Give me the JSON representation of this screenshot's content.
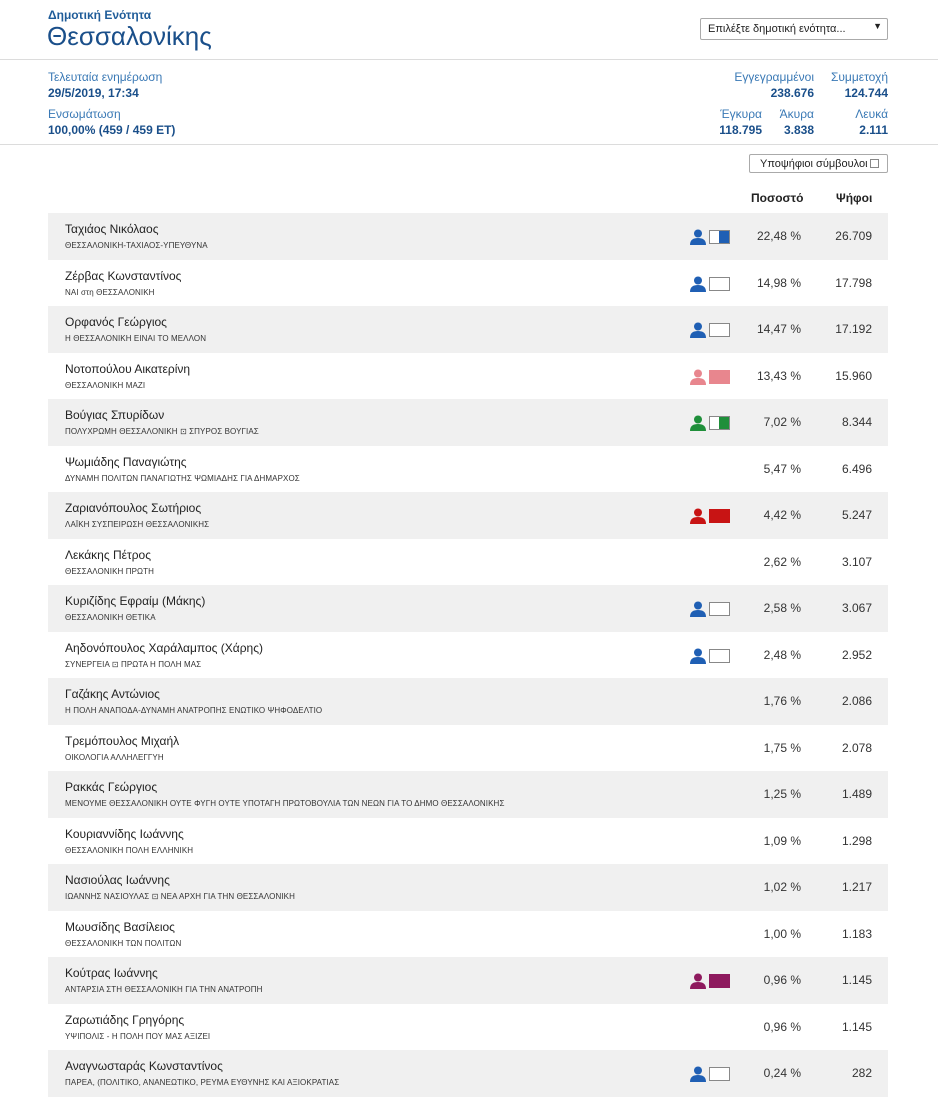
{
  "header": {
    "unit_label": "Δημοτική Ενότητα",
    "title": "Θεσσαλονίκης",
    "select_value": "Επιλέξτε δημοτική ενότητα..."
  },
  "stats": {
    "last_update_label": "Τελευταία ενημέρωση",
    "last_update_value": "29/5/2019, 17:34",
    "integration_label": "Ενσωμάτωση",
    "integration_value": "100,00% (459 / 459 ΕΤ)",
    "registered_label": "Εγγεγραμμένοι",
    "registered_value": "238.676",
    "turnout_label": "Συμμετοχή",
    "turnout_value": "124.744",
    "valid_label": "Έγκυρα",
    "valid_value": "118.795",
    "invalid_label": "Άκυρα",
    "invalid_value": "3.838",
    "blank_label": "Λευκά",
    "blank_value": "2.111"
  },
  "toggle_label": "Υποψήφιοι σύμβουλοι",
  "columns": {
    "percent": "Ποσοστό",
    "votes": "Ψήφοι"
  },
  "candidates": [
    {
      "name": "Ταχιάος Νικόλαος",
      "party": "ΘΕΣΣΑΛΟΝΙΚΗ-ΤΑΧΙΑΟΣ-ΥΠΕΥΘΥΝΑ",
      "percent": "22,48 %",
      "votes": "26.709",
      "icon_color": "#1f5fb4",
      "flag_color": "#1f5fb4",
      "flag_fill": 0.55
    },
    {
      "name": "Ζέρβας Κωνσταντίνος",
      "party": "ΝΑΙ στη ΘΕΣΣΑΛΟΝΙΚΗ",
      "percent": "14,98 %",
      "votes": "17.798",
      "icon_color": "#1f5fb4",
      "flag_color": "#ffffff",
      "flag_fill": 0
    },
    {
      "name": "Ορφανός Γεώργιος",
      "party": "Η ΘΕΣΣΑΛΟΝΙΚΗ ΕΙΝΑΙ ΤΟ ΜΕΛΛΟΝ",
      "percent": "14,47 %",
      "votes": "17.192",
      "icon_color": "#1f5fb4",
      "flag_color": "#ffffff",
      "flag_fill": 0
    },
    {
      "name": "Νοτοπούλου Αικατερίνη",
      "party": "ΘΕΣΣΑΛΟΝΙΚΗ ΜΑΖΙ",
      "percent": "13,43 %",
      "votes": "15.960",
      "icon_color": "#e8868e",
      "flag_color": "#e8868e",
      "flag_fill": 1
    },
    {
      "name": "Βούγιας Σπυρίδων",
      "party": "ΠΟΛΥΧΡΩΜΗ ΘΕΣΣΑΛΟΝΙΚΗ ⊡ ΣΠΥΡΟΣ ΒΟΥΓΙΑΣ",
      "percent": "7,02 %",
      "votes": "8.344",
      "icon_color": "#1f8f3a",
      "flag_color": "#1f8f3a",
      "flag_fill": 0.55
    },
    {
      "name": "Ψωμιάδης Παναγιώτης",
      "party": "ΔΥΝΑΜΗ ΠΟΛΙΤΩΝ ΠΑΝΑΓΙΩΤΗΣ ΨΩΜΙΑΔΗΣ ΓΙΑ ΔΗΜΑΡΧΟΣ",
      "percent": "5,47 %",
      "votes": "6.496",
      "icon_color": "",
      "flag_color": "",
      "flag_fill": 0
    },
    {
      "name": "Ζαριανόπουλος Σωτήριος",
      "party": "ΛΑΪΚΗ ΣΥΣΠΕΙΡΩΣΗ ΘΕΣΣΑΛΟΝΙΚΗΣ",
      "percent": "4,42 %",
      "votes": "5.247",
      "icon_color": "#c81414",
      "flag_color": "#c81414",
      "flag_fill": 1
    },
    {
      "name": "Λεκάκης Πέτρος",
      "party": "ΘΕΣΣΑΛΟΝΙΚΗ ΠΡΩΤΗ",
      "percent": "2,62 %",
      "votes": "3.107",
      "icon_color": "",
      "flag_color": "",
      "flag_fill": 0
    },
    {
      "name": "Κυριζίδης Εφραίμ (Μάκης)",
      "party": "ΘΕΣΣΑΛΟΝΙΚΗ ΘΕΤΙΚΑ",
      "percent": "2,58 %",
      "votes": "3.067",
      "icon_color": "#1f5fb4",
      "flag_color": "#ffffff",
      "flag_fill": 0
    },
    {
      "name": "Αηδονόπουλος Χαράλαμπος (Χάρης)",
      "party": "ΣΥΝΕΡΓΕΙΑ ⊡ ΠΡΩΤΑ Η ΠΟΛΗ ΜΑΣ",
      "percent": "2,48 %",
      "votes": "2.952",
      "icon_color": "#1f5fb4",
      "flag_color": "#ffffff",
      "flag_fill": 0
    },
    {
      "name": "Γαζάκης Αντώνιος",
      "party": "Η ΠΟΛΗ ΑΝΑΠΟΔΑ-ΔΥΝΑΜΗ ΑΝΑΤΡΟΠΗΣ ΕΝΩΤΙΚΟ ΨΗΦΟΔΕΛΤΙΟ",
      "percent": "1,76 %",
      "votes": "2.086",
      "icon_color": "",
      "flag_color": "",
      "flag_fill": 0
    },
    {
      "name": "Τρεμόπουλος Μιχαήλ",
      "party": "ΟΙΚΟΛΟΓΙΑ ΑΛΛΗΛΕΓΓΥΗ",
      "percent": "1,75 %",
      "votes": "2.078",
      "icon_color": "",
      "flag_color": "",
      "flag_fill": 0
    },
    {
      "name": "Ρακκάς Γεώργιος",
      "party": "ΜΕΝΟΥΜΕ ΘΕΣΣΑΛΟΝΙΚΗ ΟΥΤΕ ΦΥΓΗ ΟΥΤΕ ΥΠΟΤΑΓΗ ΠΡΩΤΟΒΟΥΛΙΑ ΤΩΝ ΝΕΩΝ ΓΙΑ ΤΟ ΔΗΜΟ ΘΕΣΣΑΛΟΝΙΚΗΣ",
      "percent": "1,25 %",
      "votes": "1.489",
      "icon_color": "",
      "flag_color": "",
      "flag_fill": 0
    },
    {
      "name": "Κουριαννίδης Ιωάννης",
      "party": "ΘΕΣΣΑΛΟΝΙΚΗ ΠΟΛΗ ΕΛΛΗΝΙΚΗ",
      "percent": "1,09 %",
      "votes": "1.298",
      "icon_color": "",
      "flag_color": "",
      "flag_fill": 0
    },
    {
      "name": "Νασιούλας Ιωάννης",
      "party": "ΙΩΑΝΝΗΣ ΝΑΣΙΟΥΛΑΣ ⊡ ΝΕΑ ΑΡΧΗ ΓΙΑ ΤΗΝ ΘΕΣΣΑΛΟΝΙΚΗ",
      "percent": "1,02 %",
      "votes": "1.217",
      "icon_color": "",
      "flag_color": "",
      "flag_fill": 0
    },
    {
      "name": "Μωυσίδης Βασίλειος",
      "party": "ΘΕΣΣΑΛΟΝΙΚΗ ΤΩΝ ΠΟΛΙΤΩΝ",
      "percent": "1,00 %",
      "votes": "1.183",
      "icon_color": "",
      "flag_color": "",
      "flag_fill": 0
    },
    {
      "name": "Κούτρας Ιωάννης",
      "party": "ΑΝΤΑΡΣΙΑ ΣΤΗ ΘΕΣΣΑΛΟΝΙΚΗ ΓΙΑ ΤΗΝ ΑΝΑΤΡΟΠΗ",
      "percent": "0,96 %",
      "votes": "1.145",
      "icon_color": "#8e1a5e",
      "flag_color": "#8e1a5e",
      "flag_fill": 1
    },
    {
      "name": "Ζαρωτιάδης Γρηγόρης",
      "party": "ΥΨΙΠΟΛΙΣ - Η ΠΟΛΗ ΠΟΥ ΜΑΣ ΑΞΙΖΕΙ",
      "percent": "0,96 %",
      "votes": "1.145",
      "icon_color": "",
      "flag_color": "",
      "flag_fill": 0
    },
    {
      "name": "Αναγνωσταράς Κωνσταντίνος",
      "party": "ΠΑΡΕΑ, (ΠΟΛΙΤΙΚΟ, ΑΝΑΝΕΩΤΙΚΟ, ΡΕΥΜΑ ΕΥΘΥΝΗΣ ΚΑΙ ΑΞΙΟΚΡΑΤΙΑΣ",
      "percent": "0,24 %",
      "votes": "282",
      "icon_color": "#1f5fb4",
      "flag_color": "#ffffff",
      "flag_fill": 0
    }
  ]
}
